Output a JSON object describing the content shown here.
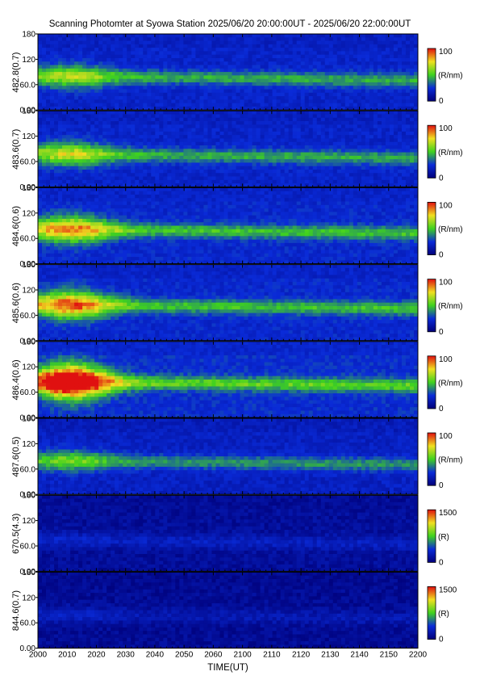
{
  "title": "Scanning Photomter at Syowa Station  2025/06/20 20:00:00UT - 2025/06/20 22:00:00UT",
  "colors": {
    "background_low": "#00007a",
    "blue": "#0a2bd8",
    "green": "#3fd21f",
    "yellow": "#f0e020",
    "red": "#e01010"
  },
  "chart_data": {
    "type": "heatmap",
    "x_axis": {
      "label": "TIME(UT)",
      "range": [
        2000,
        2200
      ],
      "tick_labels": [
        "2000",
        "2010",
        "2020",
        "2030",
        "2040",
        "2050",
        "2060",
        "2100",
        "2110",
        "2120",
        "2130",
        "2140",
        "2150",
        "2200"
      ]
    },
    "y_axis": {
      "range": [
        0,
        180
      ],
      "tick_labels": [
        "0.00",
        "60.0",
        "120",
        "180"
      ]
    },
    "panels": [
      {
        "ylabel": "482.8(0.7)",
        "colorbar_max": "100",
        "colorbar_min": "0",
        "colorbar_unit": "(R/nm)",
        "intensity": 0.55,
        "band_center": 80,
        "early_boost": 0.35
      },
      {
        "ylabel": "483.6(0.7)",
        "colorbar_max": "100",
        "colorbar_min": "0",
        "colorbar_unit": "(R/nm)",
        "intensity": 0.55,
        "band_center": 78,
        "early_boost": 0.4
      },
      {
        "ylabel": "484.6(0.6)",
        "colorbar_max": "100",
        "colorbar_min": "0",
        "colorbar_unit": "(R/nm)",
        "intensity": 0.6,
        "band_center": 82,
        "early_boost": 0.55
      },
      {
        "ylabel": "485.6(0.6)",
        "colorbar_max": "100",
        "colorbar_min": "0",
        "colorbar_unit": "(R/nm)",
        "intensity": 0.6,
        "band_center": 85,
        "early_boost": 0.6
      },
      {
        "ylabel": "486.4(0.6)",
        "colorbar_max": "100",
        "colorbar_min": "0",
        "colorbar_unit": "(R/nm)",
        "intensity": 0.65,
        "band_center": 85,
        "early_boost": 0.9
      },
      {
        "ylabel": "487.6(0.5)",
        "colorbar_max": "100",
        "colorbar_min": "0",
        "colorbar_unit": "(R/nm)",
        "intensity": 0.5,
        "band_center": 80,
        "early_boost": 0.3
      },
      {
        "ylabel": "670.5(4.3)",
        "colorbar_max": "1500",
        "colorbar_min": "0",
        "colorbar_unit": "(R)",
        "intensity": 0.22,
        "band_center": 75,
        "early_boost": 0.05
      },
      {
        "ylabel": "844.6(0.7)",
        "colorbar_max": "1500",
        "colorbar_min": "0",
        "colorbar_unit": "(R)",
        "intensity": 0.18,
        "band_center": 80,
        "early_boost": 0.1
      }
    ]
  }
}
